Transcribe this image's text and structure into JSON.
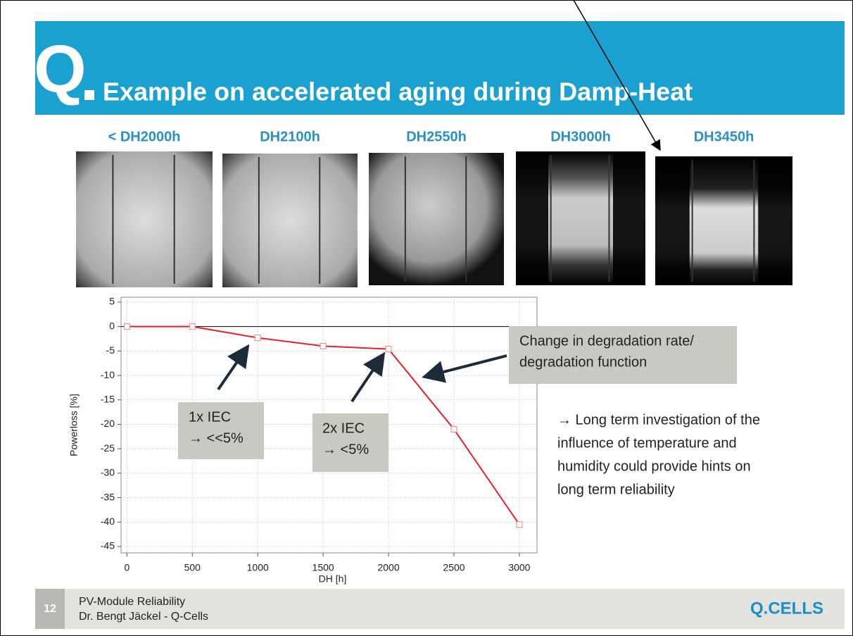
{
  "header": {
    "logo": "Q",
    "title": "Example on accelerated aging during Damp-Heat"
  },
  "images": [
    {
      "label": "< DH2000h"
    },
    {
      "label": "DH2100h"
    },
    {
      "label": "DH2550h"
    },
    {
      "label": "DH3000h"
    },
    {
      "label": "DH3450h"
    }
  ],
  "chart_data": {
    "type": "line",
    "x": [
      0,
      500,
      1000,
      1500,
      2000,
      2500,
      3000
    ],
    "values": [
      0,
      0,
      -2.3,
      -4,
      -4.6,
      -21,
      -40.5
    ],
    "color": "#e8202a",
    "xlim": [
      -45,
      3135
    ],
    "ylim": [
      -46.3,
      6
    ],
    "xticks": [
      0,
      500,
      1000,
      1500,
      2000,
      2500,
      3000
    ],
    "yticks": [
      5,
      0,
      -5,
      -10,
      -15,
      -20,
      -25,
      -30,
      -35,
      -40,
      -45
    ],
    "x_label": "DH [h]",
    "y_label": "Powerloss [%]",
    "grid": true,
    "annotations": [
      {
        "lines": [
          "1x IEC",
          "→ <<5%"
        ]
      },
      {
        "lines": [
          "2x IEC",
          "→ <5%"
        ]
      },
      {
        "lines": [
          "Change in degradation rate/",
          "degradation function"
        ]
      }
    ]
  },
  "note": {
    "lines": [
      "→ Long term investigation of the",
      "influence of temperature and",
      "humidity could provide hints on",
      "long term reliability"
    ]
  },
  "footer": {
    "page": "12",
    "lines": [
      "PV-Module Reliability",
      "Dr. Bengt Jäckel  - Q-Cells"
    ],
    "logo": "Q.CELLS"
  }
}
